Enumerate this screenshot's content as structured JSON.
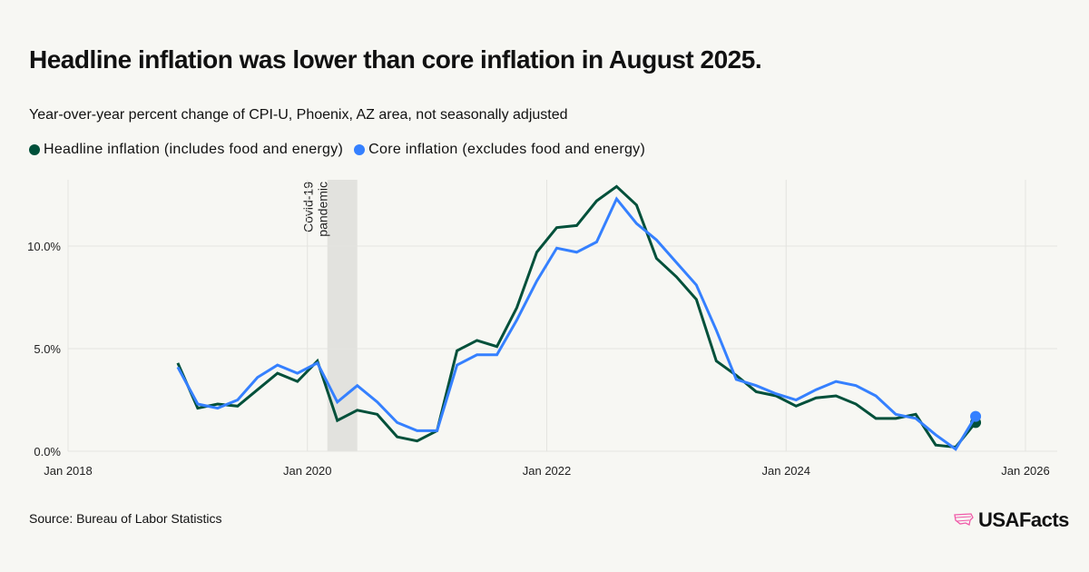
{
  "title": "Headline inflation was lower than core inflation in August 2025.",
  "subtitle": "Year-over-year percent change of CPI-U, Phoenix, AZ area, not seasonally adjusted",
  "source": "Source: Bureau of Labor Statistics",
  "logo_text": "USAFacts",
  "colors": {
    "headline": "#00503a",
    "core": "#3580ff",
    "band": "#e2e2de",
    "logo": "#f05aa8"
  },
  "chart_data": {
    "type": "line",
    "title": "Headline inflation was lower than core inflation in August 2025.",
    "xlabel": "",
    "ylabel": "",
    "x_start": "2018-12",
    "x_step_months": 2,
    "xlim_months_from_jan2018": [
      0,
      96
    ],
    "ylim": [
      0,
      13
    ],
    "x_ticks": [
      {
        "label": "Jan 2018",
        "m": 0
      },
      {
        "label": "Jan 2020",
        "m": 24
      },
      {
        "label": "Jan 2022",
        "m": 48
      },
      {
        "label": "Jan 2024",
        "m": 72
      },
      {
        "label": "Jan 2026",
        "m": 96
      }
    ],
    "y_ticks": [
      {
        "label": "0.0%",
        "v": 0
      },
      {
        "label": "5.0%",
        "v": 5
      },
      {
        "label": "10.0%",
        "v": 10
      }
    ],
    "annotation": {
      "lines": [
        "Covid-19",
        "pandemic"
      ],
      "start_m": 26,
      "end_m": 29
    },
    "legend_position": "top-left",
    "series": [
      {
        "name": "Headline inflation (includes food and energy)",
        "values": [
          4.3,
          2.1,
          2.3,
          2.2,
          3.0,
          3.8,
          3.4,
          4.4,
          1.5,
          2.0,
          1.8,
          0.7,
          0.5,
          1.0,
          4.9,
          5.4,
          5.1,
          7.0,
          9.7,
          10.9,
          11.0,
          12.2,
          12.9,
          12.0,
          9.4,
          8.5,
          7.4,
          4.4,
          3.7,
          2.9,
          2.7,
          2.2,
          2.6,
          2.7,
          2.3,
          1.6,
          1.6,
          1.8,
          0.3,
          0.2,
          1.4
        ]
      },
      {
        "name": "Core inflation (excludes food and energy)",
        "values": [
          4.1,
          2.3,
          2.1,
          2.5,
          3.6,
          4.2,
          3.8,
          4.3,
          2.4,
          3.2,
          2.4,
          1.4,
          1.0,
          1.0,
          4.2,
          4.7,
          4.7,
          6.4,
          8.3,
          9.9,
          9.7,
          10.2,
          12.3,
          11.1,
          10.3,
          9.2,
          8.1,
          5.9,
          3.5,
          3.2,
          2.8,
          2.5,
          3.0,
          3.4,
          3.2,
          2.7,
          1.8,
          1.6,
          0.8,
          0.1,
          1.7
        ]
      }
    ]
  }
}
